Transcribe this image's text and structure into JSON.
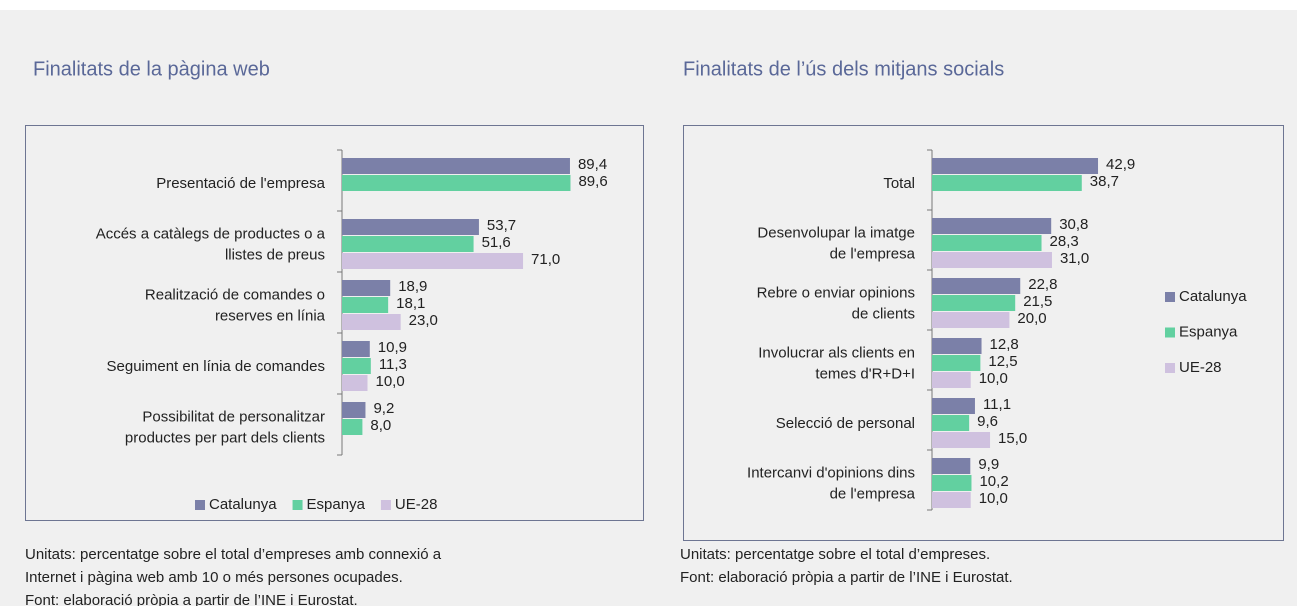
{
  "chart_data": [
    {
      "type": "hbar",
      "title": "Finalitats de la pàgina web",
      "categories": [
        "Presentació de l'empresa",
        "Accés a catàlegs de productes o a\nllistes de preus",
        "Realització de comandes o\nreserves en línia",
        "Seguiment en línia de comandes",
        "Possibilitat de personalitzar\nproductes per part dels clients"
      ],
      "series": [
        {
          "name": "Catalunya",
          "color": "#7b80a8",
          "values": [
            89.4,
            53.7,
            18.9,
            10.9,
            9.2
          ],
          "value_labels": [
            "89,4",
            "53,7",
            "18,9",
            "10,9",
            "9,2"
          ]
        },
        {
          "name": "Espanya",
          "color": "#62d0a0",
          "values": [
            89.6,
            51.6,
            18.1,
            11.3,
            8.0
          ],
          "value_labels": [
            "89,6",
            "51,6",
            "18,1",
            "11,3",
            "8,0"
          ]
        },
        {
          "name": "UE-28",
          "color": "#cfc1df",
          "values": [
            null,
            71.0,
            23.0,
            10.0,
            null
          ],
          "value_labels": [
            null,
            "71,0",
            "23,0",
            "10,0",
            null
          ]
        }
      ],
      "xlim": [
        0,
        100
      ],
      "legend": "bottom",
      "note": [
        "Unitats: percentatge sobre el total d’empreses amb connexió a",
        "Internet i pàgina web amb 10 o més persones ocupades.",
        "Font: elaboració pròpia a partir de l’INE i Eurostat."
      ]
    },
    {
      "type": "hbar",
      "title": "Finalitats de l’ús dels mitjans socials",
      "categories": [
        "Total",
        "Desenvolupar la imatge\nde l'empresa",
        "Rebre o enviar opinions\nde clients",
        "Involucrar als clients en\ntemes d'R+D+I",
        "Selecció de personal",
        "Intercanvi d'opinions dins\nde l'empresa"
      ],
      "series": [
        {
          "name": "Catalunya",
          "color": "#7b80a8",
          "values": [
            42.9,
            30.8,
            22.8,
            12.8,
            11.1,
            9.9
          ],
          "value_labels": [
            "42,9",
            "30,8",
            "22,8",
            "12,8",
            "11,1",
            "9,9"
          ]
        },
        {
          "name": "Espanya",
          "color": "#62d0a0",
          "values": [
            38.7,
            28.3,
            21.5,
            12.5,
            9.6,
            10.2
          ],
          "value_labels": [
            "38,7",
            "28,3",
            "21,5",
            "12,5",
            "9,6",
            "10,2"
          ]
        },
        {
          "name": "UE-28",
          "color": "#cfc1df",
          "values": [
            null,
            31.0,
            20.0,
            10.0,
            15.0,
            10.0
          ],
          "value_labels": [
            null,
            "31,0",
            "20,0",
            "10,0",
            "15,0",
            "10,0"
          ]
        }
      ],
      "xlim": [
        0,
        60
      ],
      "legend": "right",
      "note": [
        "Unitats: percentatge sobre el total d’empreses.",
        "Font: elaboració pròpia a partir de l’INE i Eurostat."
      ]
    }
  ]
}
